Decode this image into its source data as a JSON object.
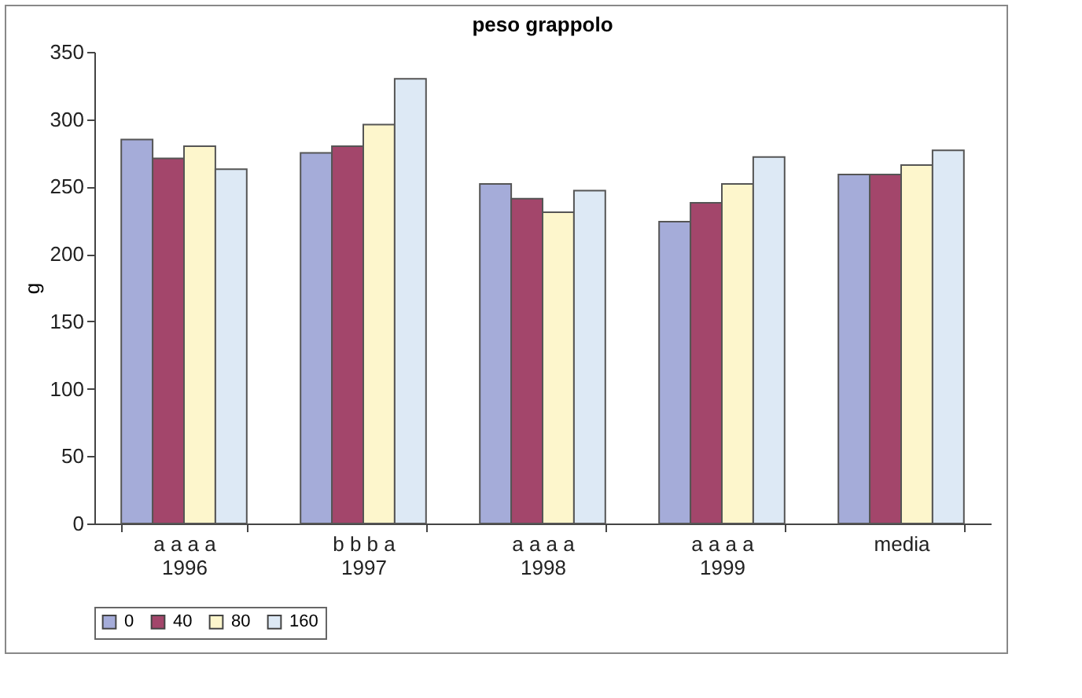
{
  "chart_data": {
    "type": "bar",
    "title": "peso grappolo",
    "ylabel": "g",
    "categories": [
      "a a a a\n1996",
      "b b b a\n1997",
      "a a a a\n1998",
      "a a a a\n1999",
      "media"
    ],
    "series": [
      {
        "name": "0",
        "color": "#a5acd9",
        "values": [
          285,
          275,
          252,
          224,
          259
        ]
      },
      {
        "name": "40",
        "color": "#a3466b",
        "values": [
          271,
          280,
          241,
          238,
          259
        ]
      },
      {
        "name": "80",
        "color": "#fdf6cc",
        "values": [
          280,
          296,
          231,
          252,
          266
        ]
      },
      {
        "name": "160",
        "color": "#dde9f5",
        "values": [
          263,
          330,
          247,
          272,
          277
        ]
      }
    ],
    "ylim": [
      0,
      350
    ],
    "yticks": [
      0,
      50,
      100,
      150,
      200,
      250,
      300,
      350
    ],
    "grid": false,
    "legend": "bottom"
  }
}
